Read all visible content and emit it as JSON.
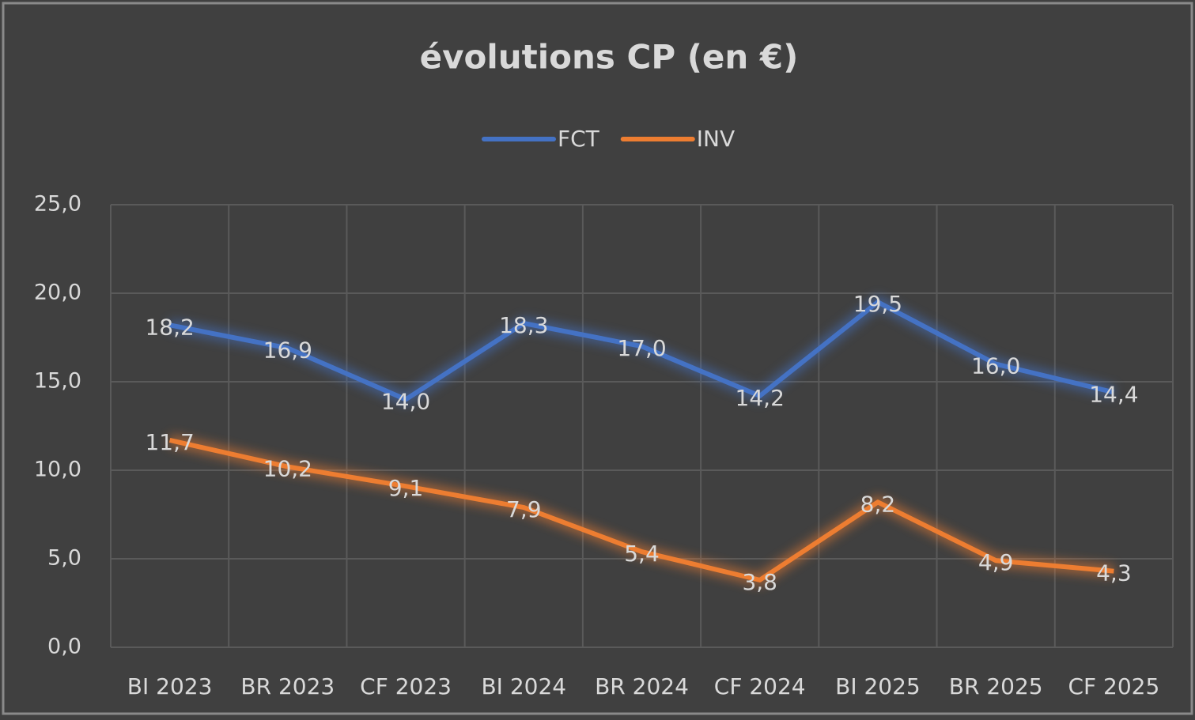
{
  "chart_data": {
    "type": "line",
    "title": "évolutions CP  (en €)",
    "categories": [
      "BI 2023",
      "BR 2023",
      "CF 2023",
      "BI 2024",
      "BR 2024",
      "CF 2024",
      "BI 2025",
      "BR 2025",
      "CF 2025"
    ],
    "series": [
      {
        "name": "FCT",
        "color": "#4472c4",
        "values": [
          18.2,
          16.9,
          14.0,
          18.3,
          17.0,
          14.2,
          19.5,
          16.0,
          14.4
        ],
        "value_labels": [
          "18,2",
          "16,9",
          "14,0",
          "18,3",
          "17,0",
          "14,2",
          "19,5",
          "16,0",
          "14,4"
        ]
      },
      {
        "name": "INV",
        "color": "#ed7d31",
        "values": [
          11.7,
          10.2,
          9.1,
          7.9,
          5.4,
          3.8,
          8.2,
          4.9,
          4.3
        ],
        "value_labels": [
          "11,7",
          "10,2",
          "9,1",
          "7,9",
          "5,4",
          "3,8",
          "8,2",
          "4,9",
          "4,3"
        ]
      }
    ],
    "ylim": [
      0,
      25
    ],
    "yticks": [
      {
        "value": 0,
        "label": "0,0"
      },
      {
        "value": 5,
        "label": "5,0"
      },
      {
        "value": 10,
        "label": "10,0"
      },
      {
        "value": 15,
        "label": "15,0"
      },
      {
        "value": 20,
        "label": "20,0"
      },
      {
        "value": 25,
        "label": "25,0"
      }
    ],
    "grid": true,
    "legend": "top"
  }
}
